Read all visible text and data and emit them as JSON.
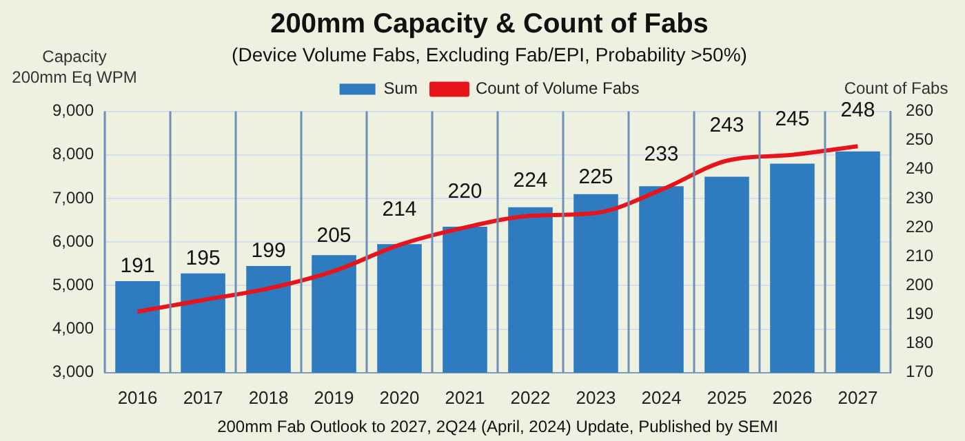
{
  "chart_data": {
    "type": "bar",
    "title": "200mm Capacity & Count of Fabs",
    "subtitle": "(Device Volume Fabs, Excluding Fab/EPI, Probability >50%)",
    "ylabel": "Capacity\n200mm Eq WPM",
    "y2label": "Count of Fabs",
    "categories": [
      "2016",
      "2017",
      "2018",
      "2019",
      "2020",
      "2021",
      "2022",
      "2023",
      "2024",
      "2025",
      "2026",
      "2027"
    ],
    "series": [
      {
        "name": "Sum",
        "color": "#2e7bbf",
        "values": [
          5100,
          5280,
          5450,
          5700,
          5950,
          6350,
          6800,
          7100,
          7280,
          7500,
          7800,
          8080
        ]
      },
      {
        "name": "Count of Volume Fabs",
        "type": "line",
        "axis": "y2",
        "color": "#e8141c",
        "data_labels": true,
        "values": [
          191,
          195,
          199,
          205,
          214,
          220,
          224,
          225,
          233,
          243,
          245,
          248
        ]
      }
    ],
    "ylim": [
      3000,
      9000
    ],
    "yticks": [
      {
        "value": 3000,
        "label": "3,000"
      },
      {
        "value": 4000,
        "label": "4,000"
      },
      {
        "value": 5000,
        "label": "5,000"
      },
      {
        "value": 6000,
        "label": "6,000"
      },
      {
        "value": 7000,
        "label": "7,000"
      },
      {
        "value": 8000,
        "label": "8,000"
      },
      {
        "value": 9000,
        "label": "9,000"
      }
    ],
    "y2lim": [
      170,
      260
    ],
    "y2ticks": [
      170,
      180,
      190,
      200,
      210,
      220,
      230,
      240,
      250,
      260
    ],
    "grid": true,
    "legend": "top",
    "marker": "none",
    "line_style": "solid",
    "annotations": [
      "200mm Fab Outlook to 2027, 2Q24 (April, 2024) Update, Published by SEMI"
    ]
  }
}
